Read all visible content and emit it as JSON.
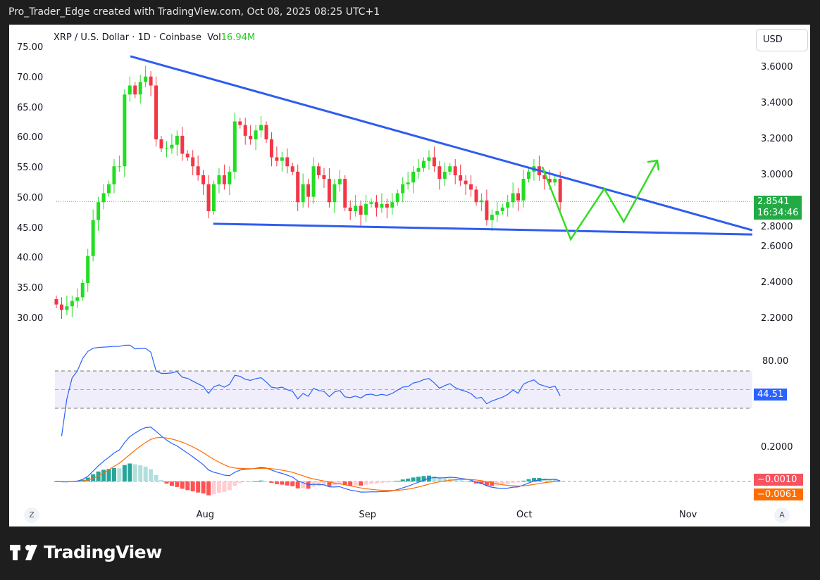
{
  "header": {
    "attribution": "Pro_Trader_Edge created with TradingView.com, Oct 08, 2025 08:25 UTC+1"
  },
  "legend": {
    "symbol": "XRP / U.S. Dollar · 1D · Coinbase",
    "vol_label": "Vol",
    "vol_value": "16.94M"
  },
  "currency_button": "USD",
  "price_tag": {
    "price": "2.8541",
    "countdown": "16:34:46"
  },
  "rsi_tag": "44.51",
  "macd_tags": {
    "macd": "−0.0010",
    "signal": "−0.0061"
  },
  "scale_buttons": {
    "left": "Z",
    "right": "A"
  },
  "footer": {
    "brand": "TradingView"
  },
  "colors": {
    "up": "#22dd22",
    "down": "#f23645",
    "trend": "#2f5cf0",
    "projection": "#33dd22",
    "rsi": "#2962ff",
    "macd": "#2962ff",
    "signal": "#ff6d00"
  },
  "chart_data": {
    "type": "candlestick",
    "title": "XRP / U.S. Dollar · 1D · Coinbase",
    "start_date": "2025-07-04",
    "closes": [
      2.28,
      2.25,
      2.27,
      2.3,
      2.32,
      2.4,
      2.55,
      2.75,
      2.85,
      2.9,
      2.95,
      3.05,
      3.05,
      3.45,
      3.5,
      3.45,
      3.52,
      3.55,
      3.5,
      3.2,
      3.15,
      3.15,
      3.17,
      3.22,
      3.12,
      3.1,
      3.05,
      3.0,
      2.95,
      2.8,
      2.95,
      3.0,
      2.95,
      3.02,
      3.3,
      3.28,
      3.22,
      3.2,
      3.25,
      3.28,
      3.2,
      3.1,
      3.08,
      3.1,
      3.05,
      3.02,
      2.85,
      2.95,
      2.88,
      3.05,
      3.0,
      2.98,
      2.85,
      2.95,
      2.98,
      2.82,
      2.8,
      2.83,
      2.78,
      2.84,
      2.85,
      2.82,
      2.84,
      2.82,
      2.85,
      2.9,
      2.95,
      2.96,
      3.02,
      3.04,
      3.08,
      3.1,
      3.05,
      2.98,
      3.02,
      3.05,
      3.0,
      2.97,
      2.95,
      2.92,
      2.85,
      2.86,
      2.75,
      2.78,
      2.8,
      2.82,
      2.85,
      2.9,
      2.86,
      2.98,
      3.02,
      3.05,
      3.0,
      2.98,
      2.96,
      2.98,
      2.85
    ],
    "current_price": 2.8541,
    "right_axis": {
      "ticks": [
        "3.6000",
        "3.4000",
        "3.2000",
        "3.0000",
        "2.8000",
        "2.6000",
        "2.4000",
        "2.2000"
      ],
      "values": [
        3.6,
        3.4,
        3.2,
        3.0,
        2.8,
        2.6,
        2.4,
        2.2
      ]
    },
    "left_axis": {
      "ticks": [
        "75.00",
        "70.00",
        "65.00",
        "60.00",
        "55.00",
        "50.00",
        "45.00",
        "40.00",
        "35.00",
        "30.00"
      ],
      "values": [
        75,
        70,
        65,
        60,
        55,
        50,
        45,
        40,
        35,
        30
      ]
    },
    "x_axis": {
      "ticks": [
        "Aug",
        "Sep",
        "Oct",
        "Nov"
      ],
      "day_index": [
        28,
        59,
        89,
        120
      ]
    },
    "drawings": {
      "upper_trendline": [
        [
          14.1,
          3.663
        ],
        [
          132.6,
          2.694
        ]
      ],
      "lower_trendline": [
        [
          29.9,
          2.73
        ],
        [
          132.6,
          2.67
        ]
      ],
      "projection_path": [
        [
          92.6,
          3.047
        ],
        [
          98,
          2.643
        ],
        [
          104.4,
          2.925
        ],
        [
          108.1,
          2.741
        ],
        [
          114.5,
          3.082
        ]
      ]
    },
    "rsi": {
      "upper_band": 70,
      "lower_band": 30,
      "tick": "80.00",
      "last": 44.51
    },
    "macd": {
      "tick": "0.2000",
      "macd_last": -0.001,
      "signal_last": -0.0061
    }
  }
}
